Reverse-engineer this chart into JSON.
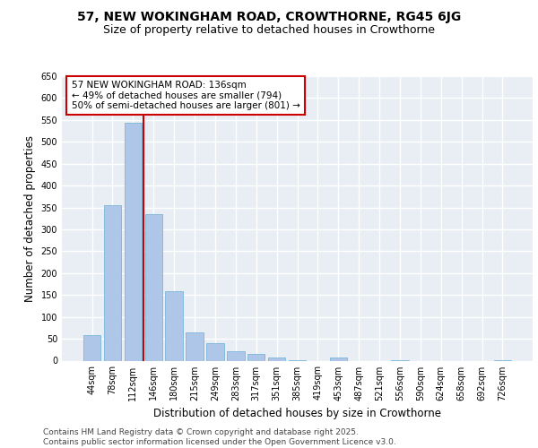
{
  "title_line1": "57, NEW WOKINGHAM ROAD, CROWTHORNE, RG45 6JG",
  "title_line2": "Size of property relative to detached houses in Crowthorne",
  "xlabel": "Distribution of detached houses by size in Crowthorne",
  "ylabel": "Number of detached properties",
  "categories": [
    "44sqm",
    "78sqm",
    "112sqm",
    "146sqm",
    "180sqm",
    "215sqm",
    "249sqm",
    "283sqm",
    "317sqm",
    "351sqm",
    "385sqm",
    "419sqm",
    "453sqm",
    "487sqm",
    "521sqm",
    "556sqm",
    "590sqm",
    "624sqm",
    "658sqm",
    "692sqm",
    "726sqm"
  ],
  "values": [
    58,
    355,
    544,
    335,
    158,
    65,
    40,
    22,
    16,
    7,
    2,
    0,
    8,
    0,
    0,
    1,
    0,
    0,
    0,
    0,
    1
  ],
  "bar_color": "#aec6e8",
  "bar_edge_color": "#6baed6",
  "vline_color": "#cc0000",
  "annotation_text": "57 NEW WOKINGHAM ROAD: 136sqm\n← 49% of detached houses are smaller (794)\n50% of semi-detached houses are larger (801) →",
  "annotation_box_color": "#ffffff",
  "annotation_box_edge_color": "#cc0000",
  "ylim": [
    0,
    650
  ],
  "yticks": [
    0,
    50,
    100,
    150,
    200,
    250,
    300,
    350,
    400,
    450,
    500,
    550,
    600,
    650
  ],
  "background_color": "#e8eef4",
  "grid_color": "#ffffff",
  "footer_text": "Contains HM Land Registry data © Crown copyright and database right 2025.\nContains public sector information licensed under the Open Government Licence v3.0.",
  "title_fontsize": 10,
  "subtitle_fontsize": 9,
  "axis_label_fontsize": 8.5,
  "tick_fontsize": 7,
  "annotation_fontsize": 7.5,
  "footer_fontsize": 6.5
}
